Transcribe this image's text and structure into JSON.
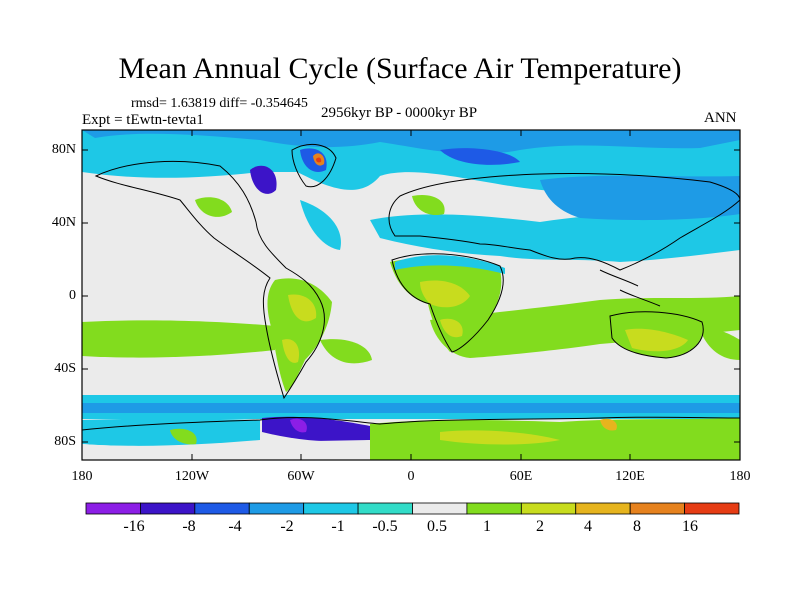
{
  "title": "Mean Annual Cycle (Surface Air Temperature)",
  "stats_line": "rmsd= 1.63819 diff= -0.354645",
  "experiment_line": "Expt = tEwtn-tevta1",
  "period_line": "2956kyr BP - 0000kyr BP",
  "season": "ANN",
  "y_axis_labels": [
    "80N",
    "40N",
    "0",
    "40S",
    "80S"
  ],
  "x_axis_labels": [
    "180",
    "120W",
    "60W",
    "0",
    "60E",
    "120E",
    "180"
  ],
  "colorbar": {
    "labels": [
      "-16",
      "-8",
      "-4",
      "-2",
      "-1",
      "-0.5",
      "0.5",
      "1",
      "2",
      "4",
      "8",
      "16"
    ],
    "colors": [
      "#8c1ee6",
      "#3c14c8",
      "#1e5ae6",
      "#1e9be6",
      "#1ec8e6",
      "#32dcc8",
      "#ebebeb",
      "#82dc1e",
      "#c8dc1e",
      "#e6b41e",
      "#e6821e",
      "#e63c14"
    ]
  }
}
